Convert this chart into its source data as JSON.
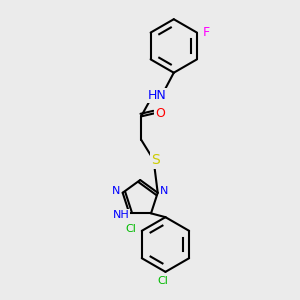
{
  "bg_color": "#ebebeb",
  "bond_color": "#000000",
  "bond_width": 1.5,
  "atom_colors": {
    "N": "#0000ff",
    "O": "#ff0000",
    "S": "#cccc00",
    "Cl": "#00bb00",
    "F": "#ff00ff",
    "C": "#000000"
  },
  "font_size": 9,
  "small_font_size": 8
}
